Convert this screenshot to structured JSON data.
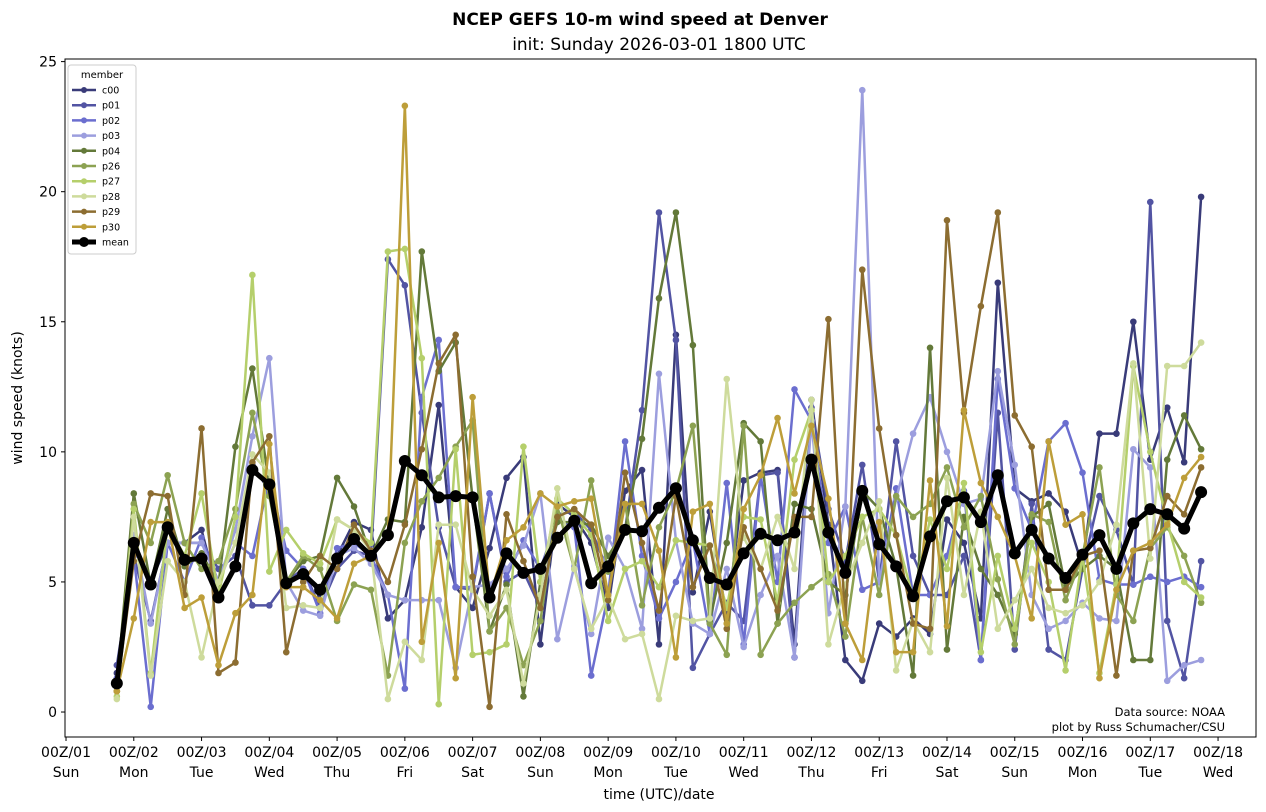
{
  "chart_data": {
    "type": "line",
    "title": "NCEP GEFS 10-m wind speed at Denver",
    "subtitle": "init: Sunday 2026-03-01 1800 UTC",
    "xlabel": "time (UTC)/date",
    "ylabel": "wind speed (knots)",
    "x_units": "days since 2026-03-01 00Z",
    "x_start": 0.75,
    "x_step": 0.25,
    "xlim": [
      -0.015,
      17.56
    ],
    "ylim": [
      -0.96,
      25.1
    ],
    "yticks": [
      0,
      5,
      10,
      15,
      20,
      25
    ],
    "xticks": [
      {
        "day": 0,
        "label": "00Z/01",
        "weekday": "Sun"
      },
      {
        "day": 1,
        "label": "00Z/02",
        "weekday": "Mon"
      },
      {
        "day": 2,
        "label": "00Z/03",
        "weekday": "Tue"
      },
      {
        "day": 3,
        "label": "00Z/04",
        "weekday": "Wed"
      },
      {
        "day": 4,
        "label": "00Z/05",
        "weekday": "Thu"
      },
      {
        "day": 5,
        "label": "00Z/06",
        "weekday": "Fri"
      },
      {
        "day": 6,
        "label": "00Z/07",
        "weekday": "Sat"
      },
      {
        "day": 7,
        "label": "00Z/08",
        "weekday": "Sun"
      },
      {
        "day": 8,
        "label": "00Z/09",
        "weekday": "Mon"
      },
      {
        "day": 9,
        "label": "00Z/10",
        "weekday": "Tue"
      },
      {
        "day": 10,
        "label": "00Z/11",
        "weekday": "Wed"
      },
      {
        "day": 11,
        "label": "00Z/12",
        "weekday": "Thu"
      },
      {
        "day": 12,
        "label": "00Z/13",
        "weekday": "Fri"
      },
      {
        "day": 13,
        "label": "00Z/14",
        "weekday": "Sat"
      },
      {
        "day": 14,
        "label": "00Z/15",
        "weekday": "Sun"
      },
      {
        "day": 15,
        "label": "00Z/16",
        "weekday": "Mon"
      },
      {
        "day": 16,
        "label": "00Z/17",
        "weekday": "Tue"
      },
      {
        "day": 17,
        "label": "00Z/18",
        "weekday": "Wed"
      }
    ],
    "legend": {
      "title": "member",
      "placement": "top-left"
    },
    "annotation": [
      "Data source: NOAA",
      "plot by Russ Schumacher/CSU"
    ],
    "grid": false,
    "series": [
      {
        "name": "c00",
        "color": "#393b79",
        "values": [
          1.5,
          6.5,
          5.0,
          6.5,
          6.5,
          7.0,
          4.5,
          5.5,
          9.5,
          8.5,
          5.0,
          5.5,
          4.5,
          6.0,
          7.3,
          7.0,
          3.6,
          4.3,
          7.1,
          11.8,
          4.8,
          4.0,
          6.3,
          9.0,
          9.8,
          2.6,
          8.0,
          7.5,
          6.5,
          4.0,
          8.5,
          9.3,
          2.6,
          14.5,
          4.6,
          7.7,
          3.6,
          8.9,
          9.2,
          9.3,
          2.6,
          12.0,
          7.2,
          2.0,
          1.2,
          3.4,
          2.9,
          3.6,
          3.0,
          7.4,
          6.5,
          3.6,
          16.5,
          8.6,
          8.1,
          8.4,
          7.7,
          5.6,
          10.7,
          10.7,
          15.0,
          9.7,
          11.7,
          9.6,
          19.8
        ]
      },
      {
        "name": "p01",
        "color": "#5254a3",
        "values": [
          1.8,
          6.0,
          3.5,
          6.5,
          6.5,
          6.5,
          5.5,
          6.0,
          4.1,
          4.1,
          5.0,
          5.5,
          4.0,
          5.5,
          6.2,
          6.0,
          17.4,
          16.4,
          11.5,
          7.1,
          4.8,
          4.7,
          8.4,
          5.0,
          5.4,
          4.0,
          7.6,
          7.7,
          7.0,
          5.4,
          7.0,
          11.6,
          19.2,
          14.3,
          1.7,
          3.0,
          4.2,
          3.5,
          9.1,
          9.2,
          2.1,
          11.7,
          7.8,
          5.8,
          9.5,
          5.0,
          10.4,
          6.0,
          4.5,
          4.5,
          6.0,
          2.0,
          11.5,
          2.4,
          8.0,
          2.4,
          2.0,
          5.5,
          8.3,
          7.0,
          4.9,
          19.6,
          3.5,
          1.3,
          5.8
        ]
      },
      {
        "name": "p02",
        "color": "#6b6ecf",
        "values": [
          1.3,
          6.0,
          0.2,
          6.5,
          5.0,
          6.7,
          5.0,
          6.5,
          6.0,
          9.0,
          6.2,
          5.5,
          3.8,
          6.3,
          6.5,
          6.0,
          4.5,
          0.9,
          12.1,
          14.3,
          4.8,
          4.8,
          8.4,
          5.2,
          6.6,
          5.5,
          7.4,
          7.1,
          1.4,
          4.5,
          10.4,
          6.0,
          3.6,
          5.0,
          6.6,
          3.0,
          8.8,
          2.6,
          9.1,
          5.0,
          12.4,
          11.2,
          6.5,
          7.9,
          4.7,
          5.0,
          8.6,
          4.5,
          4.5,
          6.0,
          8.5,
          2.0,
          12.8,
          8.6,
          7.0,
          10.4,
          11.1,
          9.2,
          5.1,
          4.9,
          4.9,
          5.2,
          5.0,
          5.2,
          4.8
        ]
      },
      {
        "name": "p03",
        "color": "#9c9ede",
        "values": [
          1.0,
          6.8,
          3.4,
          6.5,
          6.5,
          6.5,
          5.0,
          7.0,
          10.6,
          13.6,
          5.0,
          3.9,
          3.7,
          6.0,
          6.3,
          5.7,
          4.5,
          4.3,
          4.3,
          4.3,
          1.7,
          4.8,
          4.9,
          5.5,
          6.4,
          8.4,
          2.8,
          5.6,
          3.0,
          6.7,
          5.5,
          3.2,
          13.0,
          6.6,
          3.4,
          3.0,
          5.5,
          2.5,
          4.5,
          6.0,
          2.1,
          11.2,
          3.8,
          7.9,
          23.9,
          5.0,
          8.2,
          10.7,
          12.1,
          10.0,
          8.0,
          8.2,
          13.1,
          9.5,
          4.5,
          3.2,
          3.5,
          4.2,
          3.6,
          3.5,
          10.1,
          9.4,
          1.2,
          1.8,
          2.0
        ]
      },
      {
        "name": "p04",
        "color": "#637939",
        "values": [
          1.0,
          8.4,
          4.9,
          7.8,
          5.6,
          6.1,
          4.9,
          10.2,
          13.2,
          8.7,
          5.0,
          5.8,
          6.0,
          9.0,
          7.9,
          6.0,
          7.4,
          7.3,
          17.7,
          13.1,
          14.2,
          8.2,
          3.1,
          4.9,
          0.6,
          5.0,
          7.3,
          7.3,
          7.2,
          6.0,
          7.0,
          10.5,
          15.9,
          19.2,
          14.1,
          3.5,
          6.5,
          11.1,
          10.4,
          3.4,
          8.0,
          7.8,
          5.0,
          4.5,
          8.5,
          7.8,
          5.6,
          1.4,
          14.0,
          2.4,
          7.5,
          5.5,
          4.5,
          3.0,
          7.5,
          8.0,
          4.8,
          5.5,
          6.0,
          5.5,
          2.0,
          2.0,
          9.7,
          11.4,
          10.1
        ]
      },
      {
        "name": "p26",
        "color": "#8ca252",
        "values": [
          0.8,
          8.0,
          6.5,
          9.1,
          6.5,
          5.5,
          5.8,
          7.8,
          11.5,
          8.3,
          5.0,
          6.0,
          5.5,
          3.5,
          4.9,
          4.7,
          1.4,
          6.5,
          8.1,
          9.0,
          10.2,
          11.2,
          3.1,
          4.0,
          1.8,
          3.5,
          7.9,
          5.5,
          8.9,
          5.4,
          8.0,
          4.1,
          7.1,
          8.5,
          11.0,
          3.4,
          2.2,
          11.0,
          2.2,
          3.4,
          4.2,
          4.8,
          5.3,
          2.9,
          7.5,
          4.5,
          8.3,
          7.5,
          8.0,
          9.4,
          7.1,
          8.3,
          5.1,
          2.6,
          7.6,
          7.3,
          4.3,
          6.0,
          9.4,
          4.5,
          3.5,
          6.3,
          7.1,
          6.0,
          4.2
        ]
      },
      {
        "name": "p27",
        "color": "#b5cf6b",
        "values": [
          0.6,
          7.8,
          1.5,
          7.2,
          6.0,
          8.4,
          4.5,
          7.5,
          16.8,
          5.4,
          7.0,
          6.1,
          5.7,
          7.4,
          7.0,
          6.5,
          17.7,
          17.8,
          13.6,
          0.3,
          10.1,
          2.2,
          2.3,
          2.6,
          10.2,
          5.0,
          8.2,
          7.6,
          6.8,
          3.5,
          5.5,
          5.8,
          4.8,
          6.6,
          6.5,
          6.4,
          4.0,
          7.5,
          7.4,
          4.2,
          9.7,
          11.6,
          5.0,
          6.0,
          7.5,
          7.8,
          6.8,
          4.4,
          7.4,
          5.5,
          8.8,
          2.3,
          6.0,
          3.2,
          6.5,
          5.0,
          1.6,
          6.0,
          1.5,
          4.9,
          13.3,
          10.0,
          7.3,
          5.0,
          4.4
        ]
      },
      {
        "name": "p28",
        "color": "#cedb9c",
        "values": [
          0.5,
          7.5,
          1.4,
          5.8,
          5.0,
          2.1,
          5.0,
          6.5,
          9.9,
          9.2,
          4.0,
          4.1,
          4.0,
          7.4,
          7.0,
          6.2,
          0.5,
          2.7,
          2.0,
          7.2,
          7.2,
          4.7,
          3.7,
          4.7,
          1.1,
          4.5,
          8.6,
          5.5,
          3.2,
          4.4,
          2.8,
          3.0,
          0.5,
          3.7,
          3.5,
          3.6,
          12.8,
          6.7,
          5.5,
          7.5,
          5.5,
          12.0,
          2.6,
          4.9,
          6.5,
          8.1,
          1.6,
          3.5,
          2.3,
          9.0,
          4.5,
          7.7,
          3.2,
          4.3,
          5.5,
          4.0,
          3.8,
          4.1,
          5.0,
          7.2,
          13.4,
          5.9,
          13.3,
          13.3,
          14.2
        ]
      },
      {
        "name": "p29",
        "color": "#8c6d31",
        "values": [
          0.8,
          5.8,
          8.4,
          8.3,
          4.5,
          10.9,
          1.5,
          1.9,
          9.6,
          10.6,
          2.3,
          5.0,
          6.0,
          5.5,
          7.2,
          6.2,
          5.0,
          7.2,
          10.1,
          13.4,
          14.5,
          5.2,
          0.2,
          7.6,
          5.8,
          4.0,
          7.5,
          7.8,
          7.2,
          4.3,
          9.2,
          6.5,
          3.9,
          8.3,
          4.8,
          6.4,
          3.2,
          7.1,
          5.5,
          3.9,
          7.5,
          7.5,
          15.1,
          3.4,
          17.0,
          10.9,
          6.8,
          3.4,
          3.2,
          18.9,
          11.5,
          15.6,
          19.2,
          11.4,
          10.2,
          4.7,
          4.7,
          6.0,
          6.2,
          1.4,
          6.2,
          6.3,
          8.3,
          7.6,
          9.4
        ]
      },
      {
        "name": "p30",
        "color": "#bd9e39",
        "values": [
          0.8,
          3.6,
          7.3,
          7.3,
          4.0,
          4.4,
          1.8,
          3.8,
          4.5,
          10.3,
          4.8,
          4.8,
          4.3,
          3.6,
          5.7,
          6.0,
          6.8,
          23.3,
          2.7,
          6.5,
          1.3,
          12.1,
          4.4,
          6.6,
          7.1,
          8.4,
          7.9,
          8.1,
          8.2,
          4.5,
          8.0,
          8.0,
          6.2,
          2.1,
          7.7,
          8.0,
          3.4,
          7.8,
          9.1,
          11.3,
          8.4,
          11.0,
          8.2,
          3.4,
          2.0,
          7.3,
          2.3,
          2.3,
          8.9,
          3.3,
          11.6,
          8.8,
          7.5,
          6.0,
          3.6,
          10.4,
          7.2,
          7.6,
          1.3,
          4.7,
          6.2,
          6.5,
          7.2,
          9.0,
          9.8
        ]
      },
      {
        "name": "mean",
        "color": "#000000",
        "values": [
          1.1,
          6.5,
          4.9,
          7.1,
          5.85,
          5.9,
          4.4,
          5.6,
          9.3,
          8.75,
          4.95,
          5.3,
          4.7,
          5.9,
          6.65,
          6.0,
          6.8,
          9.65,
          9.1,
          8.25,
          8.3,
          8.25,
          4.4,
          6.1,
          5.35,
          5.5,
          6.7,
          7.35,
          4.95,
          5.6,
          7.0,
          6.95,
          7.85,
          8.6,
          6.6,
          5.15,
          4.9,
          6.1,
          6.85,
          6.6,
          6.9,
          9.7,
          6.9,
          5.35,
          8.5,
          6.45,
          5.6,
          4.45,
          6.75,
          8.1,
          8.25,
          7.3,
          9.1,
          6.1,
          7.0,
          5.9,
          5.15,
          6.05,
          6.8,
          5.5,
          7.25,
          7.8,
          7.6,
          7.05,
          8.45
        ]
      }
    ]
  }
}
